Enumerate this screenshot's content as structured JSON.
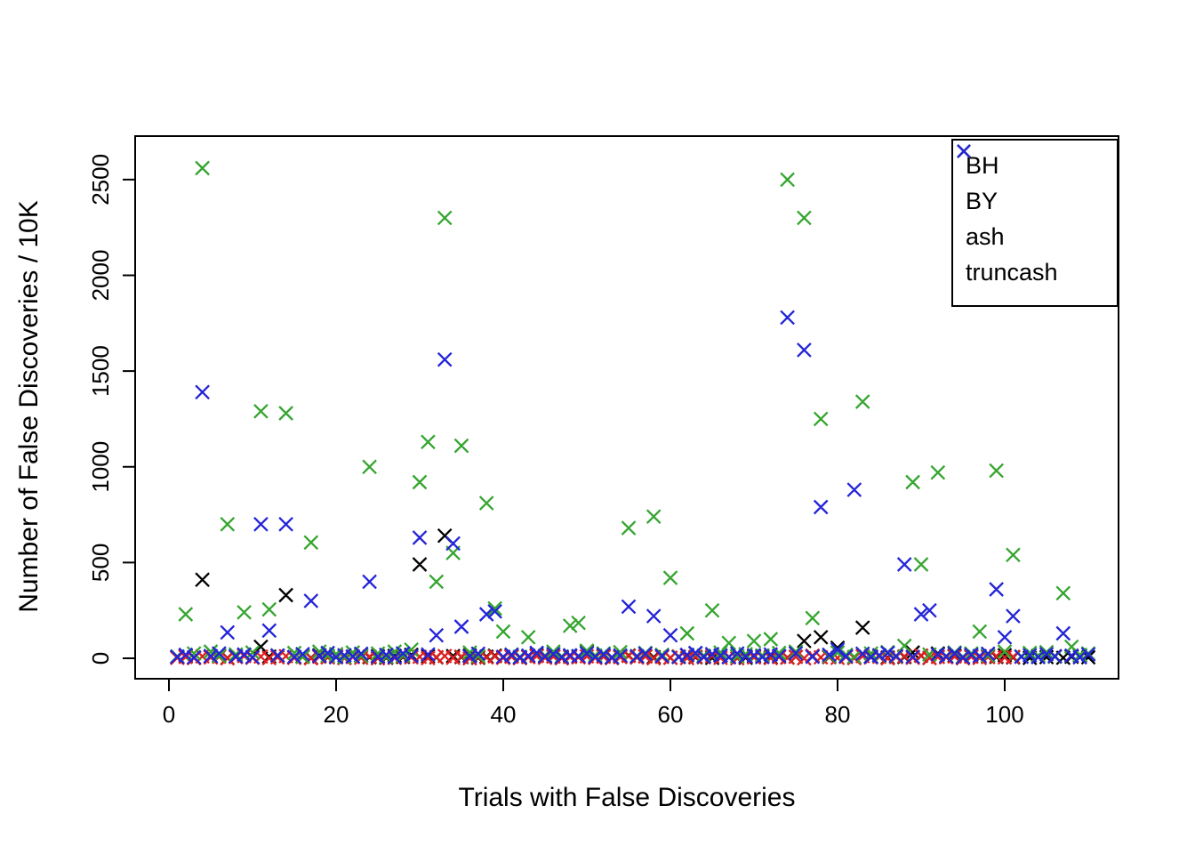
{
  "chart_data": {
    "type": "scatter",
    "marker": "x",
    "title": "",
    "xlabel": "Trials with False Discoveries",
    "ylabel": "Number of False Discoveries / 10K",
    "xlim": [
      0,
      112
    ],
    "ylim": [
      0,
      2600
    ],
    "x_ticks": [
      0,
      20,
      40,
      60,
      80,
      100
    ],
    "y_ticks": [
      0,
      500,
      1000,
      1500,
      2000,
      2500
    ],
    "grid": false,
    "legend_position": "top-right",
    "x_min": 1,
    "series": [
      {
        "name": "BH",
        "color": "#000000",
        "values": [
          5,
          12,
          3,
          410,
          8,
          15,
          2,
          10,
          18,
          4,
          60,
          9,
          14,
          330,
          6,
          11,
          3,
          16,
          7,
          12,
          2,
          9,
          15,
          5,
          11,
          3,
          13,
          7,
          18,
          490,
          10,
          4,
          640,
          12,
          6,
          15,
          3,
          9,
          14,
          5,
          11,
          2,
          8,
          16,
          4,
          10,
          3,
          13,
          7,
          35,
          5,
          12,
          2,
          9,
          15,
          4,
          11,
          6,
          13,
          3,
          8,
          16,
          5,
          10,
          2,
          14,
          7,
          11,
          3,
          9,
          15,
          5,
          12,
          4,
          8,
          90,
          13,
          110,
          6,
          55,
          10,
          3,
          160,
          9,
          15,
          4,
          11,
          6,
          30,
          13,
          2,
          25,
          8,
          14,
          5,
          10,
          3,
          12,
          7,
          16,
          4,
          9,
          2,
          13,
          6,
          11,
          3,
          8,
          14,
          5
        ]
      },
      {
        "name": "BY",
        "color": "#df2020",
        "values": [
          2,
          7,
          1,
          10,
          4,
          8,
          0,
          6,
          12,
          3,
          9,
          1,
          5,
          11,
          2,
          7,
          0,
          8,
          4,
          10,
          1,
          6,
          3,
          9,
          0,
          7,
          2,
          11,
          5,
          8,
          1,
          6,
          12,
          3,
          9,
          0,
          7,
          4,
          10,
          2,
          8,
          1,
          6,
          11,
          3,
          9,
          0,
          7,
          5,
          10,
          2,
          8,
          1,
          6,
          12,
          4,
          9,
          0,
          7,
          3,
          10,
          1,
          8,
          5,
          11,
          2,
          7,
          0,
          9,
          4,
          10,
          1,
          6,
          3,
          8,
          0,
          12,
          5,
          9,
          2,
          7,
          1,
          11,
          4,
          8,
          0,
          6,
          10,
          3,
          15,
          1,
          7,
          5,
          9,
          0,
          8,
          2,
          6,
          11,
          4,
          8,
          null,
          null,
          null,
          null,
          null,
          null,
          null,
          null,
          null
        ]
      },
      {
        "name": "ash",
        "color": "#35a52f",
        "values": [
          10,
          230,
          25,
          2560,
          35,
          12,
          700,
          20,
          240,
          30,
          1290,
          255,
          15,
          1280,
          28,
          8,
          605,
          35,
          14,
          22,
          6,
          30,
          12,
          1000,
          25,
          8,
          35,
          15,
          45,
          920,
          1130,
          400,
          2300,
          550,
          1110,
          30,
          12,
          810,
          260,
          140,
          20,
          8,
          110,
          28,
          14,
          35,
          10,
          170,
          185,
          40,
          15,
          25,
          6,
          32,
          680,
          12,
          28,
          740,
          18,
          420,
          8,
          130,
          25,
          14,
          250,
          30,
          80,
          10,
          22,
          90,
          15,
          100,
          28,
          2500,
          35,
          2300,
          210,
          1250,
          12,
          30,
          18,
          8,
          1340,
          25,
          14,
          32,
          10,
          65,
          920,
          490,
          20,
          970,
          12,
          30,
          8,
          25,
          140,
          15,
          980,
          35,
          540,
          10,
          28,
          14,
          32,
          8,
          340,
          60,
          18,
          25
        ]
      },
      {
        "name": "truncash",
        "color": "#2424d8",
        "values": [
          8,
          18,
          5,
          1390,
          12,
          25,
          135,
          10,
          20,
          6,
          700,
          145,
          15,
          700,
          8,
          22,
          300,
          12,
          28,
          5,
          16,
          10,
          24,
          400,
          8,
          18,
          6,
          26,
          12,
          630,
          20,
          120,
          1560,
          600,
          165,
          10,
          24,
          230,
          245,
          8,
          18,
          5,
          14,
          28,
          10,
          22,
          6,
          16,
          12,
          26,
          8,
          20,
          5,
          15,
          270,
          10,
          24,
          220,
          12,
          120,
          6,
          18,
          28,
          8,
          22,
          14,
          5,
          25,
          10,
          16,
          6,
          20,
          12,
          1780,
          26,
          1610,
          8,
          790,
          18,
          45,
          10,
          880,
          24,
          6,
          16,
          28,
          12,
          490,
          8,
          230,
          250,
          20,
          10,
          26,
          5,
          18,
          12,
          24,
          360,
          110,
          220,
          8,
          16,
          6,
          22,
          10,
          130,
          14,
          5,
          20
        ]
      }
    ]
  }
}
